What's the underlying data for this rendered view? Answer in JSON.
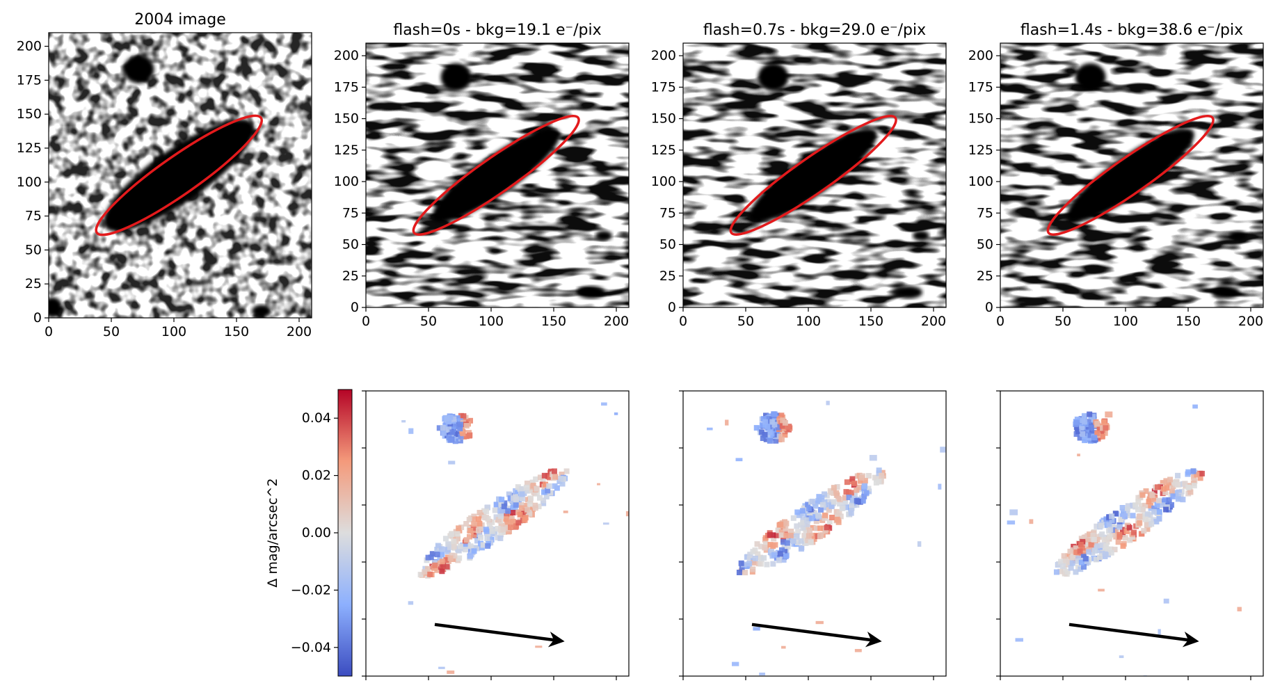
{
  "chart_data": {
    "type": "heatmap",
    "image_panels": [
      {
        "title": "2004 image",
        "xlim": [
          0,
          210
        ],
        "ylim": [
          0,
          210
        ],
        "xticks": [
          0,
          50,
          100,
          150,
          200
        ],
        "yticks": [
          0,
          25,
          50,
          75,
          100,
          125,
          150,
          175,
          200
        ]
      },
      {
        "title": "flash=0s - bkg=19.1 e⁻/pix",
        "xlim": [
          0,
          210
        ],
        "ylim": [
          0,
          210
        ],
        "xticks": [
          0,
          50,
          100,
          150,
          200
        ],
        "yticks": [
          0,
          25,
          50,
          75,
          100,
          125,
          150,
          175,
          200
        ]
      },
      {
        "title": "flash=0.7s - bkg=29.0 e⁻/pix",
        "xlim": [
          0,
          210
        ],
        "ylim": [
          0,
          210
        ],
        "xticks": [
          0,
          50,
          100,
          150,
          200
        ],
        "yticks": [
          0,
          25,
          50,
          75,
          100,
          125,
          150,
          175,
          200
        ]
      },
      {
        "title": "flash=1.4s - bkg=38.6 e⁻/pix",
        "xlim": [
          0,
          210
        ],
        "ylim": [
          0,
          210
        ],
        "xticks": [
          0,
          50,
          100,
          150,
          200
        ],
        "yticks": [
          0,
          25,
          50,
          75,
          100,
          125,
          150,
          175,
          200
        ]
      }
    ],
    "ellipse": {
      "center": [
        104,
        105
      ],
      "semi_major": 80,
      "semi_minor": 14,
      "angle_deg": 35,
      "color": "#e31a1c"
    },
    "galaxy": {
      "center": [
        104,
        105
      ],
      "length": 72,
      "width": 14,
      "angle_deg": 35
    },
    "residual_panels": 3,
    "arrow": {
      "from": [
        55,
        38
      ],
      "to": [
        155,
        26
      ],
      "color": "#000000"
    },
    "colorbar": {
      "label": "Δ mag/arcsec^2",
      "cmap": "coolwarm",
      "range": [
        -0.05,
        0.05
      ],
      "ticks": [
        0.04,
        0.02,
        0.0,
        -0.02,
        -0.04
      ],
      "tick_labels": [
        "0.04",
        "0.02",
        "0.00",
        "−0.02",
        "−0.04"
      ]
    }
  }
}
